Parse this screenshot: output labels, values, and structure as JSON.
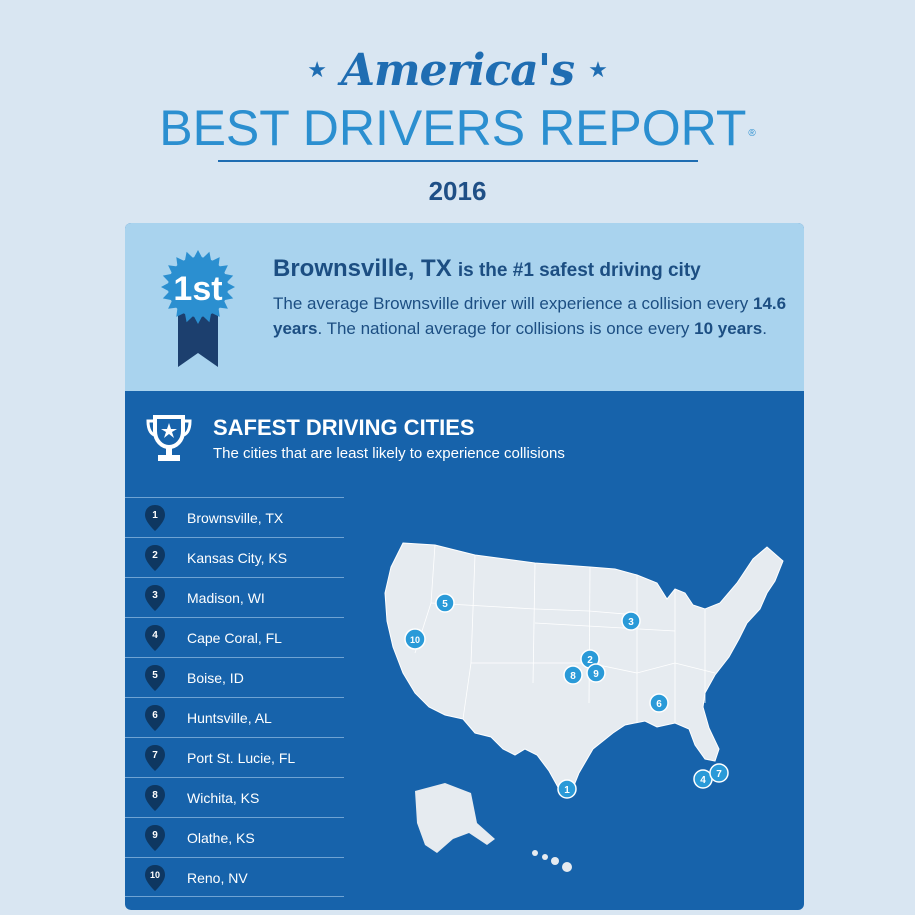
{
  "header": {
    "script_title": "America's",
    "main_title": "BEST DRIVERS REPORT",
    "registered_mark": "®",
    "year": "2016"
  },
  "highlight": {
    "badge_text": "1st",
    "city": "Brownsville, TX",
    "headline_rest": "is the #1 safest driving city",
    "desc_1": "The average Brownsville driver will experience a collision every ",
    "years_value": "14.6 years",
    "desc_2": ". The national average for collisions is once every ",
    "national_value": "10 years",
    "desc_3": "."
  },
  "section": {
    "title": "SAFEST DRIVING CITIES",
    "subtitle": "The cities that are least likely to experience collisions"
  },
  "cities": [
    {
      "rank": "1",
      "name": "Brownsville, TX"
    },
    {
      "rank": "2",
      "name": "Kansas City, KS"
    },
    {
      "rank": "3",
      "name": "Madison, WI"
    },
    {
      "rank": "4",
      "name": "Cape Coral, FL"
    },
    {
      "rank": "5",
      "name": "Boise, ID"
    },
    {
      "rank": "6",
      "name": "Huntsville, AL"
    },
    {
      "rank": "7",
      "name": "Port St. Lucie, FL"
    },
    {
      "rank": "8",
      "name": "Wichita, KS"
    },
    {
      "rank": "9",
      "name": "Olathe, KS"
    },
    {
      "rank": "10",
      "name": "Reno, NV"
    }
  ],
  "colors": {
    "page_bg": "#d9e6f2",
    "card_blue": "#1763ab",
    "light_panel": "#a9d3ee",
    "accent": "#2b8fd0",
    "navy": "#1c4e82",
    "marker": "#2a9ad8"
  },
  "icons": {
    "badge": "ribbon-badge-icon",
    "trophy": "trophy-icon",
    "pin": "map-pin-icon",
    "star": "star-icon"
  }
}
